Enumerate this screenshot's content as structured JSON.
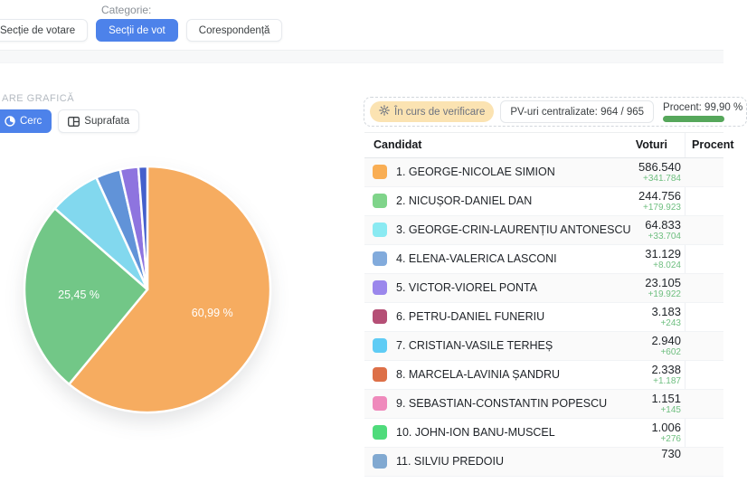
{
  "filters": {
    "category_label": "Categorie:",
    "buttons": [
      {
        "label": "Secție de votare",
        "active": false
      },
      {
        "label": "Secții de vot",
        "active": true
      },
      {
        "label": "Corespondență",
        "active": false
      }
    ]
  },
  "chart_panel": {
    "section_title": "ARE GRAFICĂ",
    "view_buttons": [
      {
        "label": "Cerc",
        "icon": "pie-chart-icon",
        "active": true
      },
      {
        "label": "Suprafata",
        "icon": "treemap-icon",
        "active": false
      }
    ]
  },
  "status": {
    "verification_badge": "În curs de verificare",
    "pv_badge": "PV-uri centralizate: 964 / 965",
    "percent_label": "Procent: 99,90 %",
    "percent_value": 99.9,
    "progress_color": "#56a75b"
  },
  "table": {
    "headers": {
      "candidate": "Candidat",
      "votes": "Voturi",
      "percent": "Procent"
    },
    "rows": [
      {
        "rank": "1",
        "name": "GEORGE-NICOLAE SIMION",
        "color": "#F9AE54",
        "votes": "586.540",
        "delta": "+341.784"
      },
      {
        "rank": "2",
        "name": "NICUȘOR-DANIEL DAN",
        "color": "#7FD48A",
        "votes": "244.756",
        "delta": "+179.923"
      },
      {
        "rank": "3",
        "name": "GEORGE-CRIN-LAURENȚIU ANTONESCU",
        "color": "#8AEAF2",
        "votes": "64.833",
        "delta": "+33.704"
      },
      {
        "rank": "4",
        "name": "ELENA-VALERICA LASCONI",
        "color": "#82ABDC",
        "votes": "31.129",
        "delta": "+8.024"
      },
      {
        "rank": "5",
        "name": "VICTOR-VIOREL PONTA",
        "color": "#9B87EC",
        "votes": "23.105",
        "delta": "+19.922"
      },
      {
        "rank": "6",
        "name": "PETRU-DANIEL FUNERIU",
        "color": "#B54F76",
        "votes": "3.183",
        "delta": "+243"
      },
      {
        "rank": "7",
        "name": "CRISTIAN-VASILE TERHEȘ",
        "color": "#5FCCF5",
        "votes": "2.940",
        "delta": "+602"
      },
      {
        "rank": "8",
        "name": "MARCELA-LAVINIA ȘANDRU",
        "color": "#DD7048",
        "votes": "2.338",
        "delta": "+1.187"
      },
      {
        "rank": "9",
        "name": "SEBASTIAN-CONSTANTIN POPESCU",
        "color": "#EF8ABC",
        "votes": "1.151",
        "delta": "+145"
      },
      {
        "rank": "10",
        "name": "JOHN-ION BANU-MUSCEL",
        "color": "#4FDB7B",
        "votes": "1.006",
        "delta": "+276"
      },
      {
        "rank": "11",
        "name": "SILVIU PREDOIU",
        "color": "#81A9D1",
        "votes": "730",
        "delta": null
      }
    ]
  },
  "chart_data": {
    "type": "pie",
    "title": "",
    "start_angle": "top, clockwise",
    "slices": [
      {
        "name": "GEORGE-NICOLAE SIMION",
        "value": 60.99,
        "color": "#F6AC60",
        "label": "60,99 %"
      },
      {
        "name": "NICUȘOR-DANIEL DAN",
        "value": 25.45,
        "color": "#72C787",
        "label": "25,45 %"
      },
      {
        "name": "GEORGE-CRIN-LAURENȚIU ANTONESCU",
        "value": 6.74,
        "color": "#82D8EE",
        "label": null
      },
      {
        "name": "ELENA-VALERICA LASCONI",
        "value": 3.24,
        "color": "#6193D8",
        "label": null
      },
      {
        "name": "VICTOR-VIOREL PONTA",
        "value": 2.4,
        "color": "#8E74DF",
        "label": null
      },
      {
        "name": "others",
        "value": 1.18,
        "color": "#4460CC",
        "label": null
      }
    ]
  },
  "colors": {
    "accent_blue": "#4d82ea",
    "delta_green": "#6fbf80",
    "progress_green": "#56a75b",
    "verification_badge_bg": "#fbe3b2"
  }
}
